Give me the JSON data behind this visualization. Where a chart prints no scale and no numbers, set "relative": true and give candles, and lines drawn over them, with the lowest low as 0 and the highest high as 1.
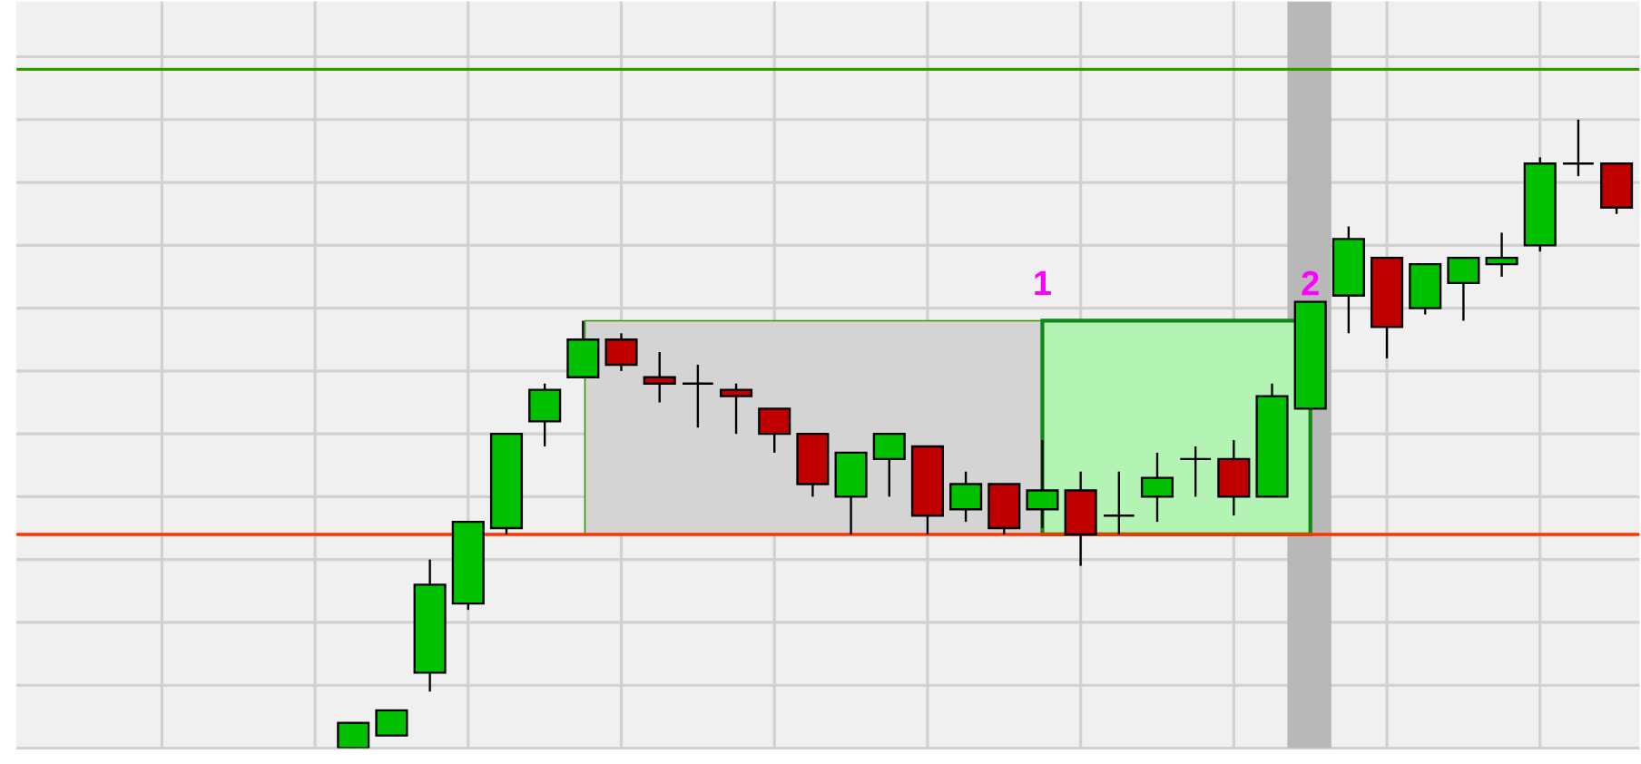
{
  "chart_data": {
    "type": "candlestick",
    "relative": true,
    "categories": [
      null,
      null,
      null,
      null,
      null,
      null,
      null,
      null,
      null,
      null,
      null,
      null,
      null,
      null,
      null,
      null,
      null,
      null,
      null,
      null,
      null,
      null,
      null,
      null,
      null,
      null,
      null,
      null,
      null,
      null,
      null,
      null,
      null,
      null
    ],
    "ohlc": [
      [
        0,
        0.04,
        0,
        0.04
      ],
      [
        0.02,
        0.06,
        0.02,
        0.06
      ],
      [
        0.12,
        0.3,
        0.09,
        0.26
      ],
      [
        0.23,
        0.36,
        0.22,
        0.36
      ],
      [
        0.35,
        0.5,
        0.34,
        0.5
      ],
      [
        0.52,
        0.58,
        0.48,
        0.57
      ],
      [
        0.59,
        0.68,
        0.59,
        0.65
      ],
      [
        0.65,
        0.66,
        0.6,
        0.61
      ],
      [
        0.59,
        0.63,
        0.55,
        0.58
      ],
      [
        0.58,
        0.61,
        0.51,
        0.58
      ],
      [
        0.57,
        0.58,
        0.5,
        0.56
      ],
      [
        0.54,
        0.54,
        0.47,
        0.5
      ],
      [
        0.5,
        0.5,
        0.4,
        0.42
      ],
      [
        0.4,
        0.47,
        0.34,
        0.47
      ],
      [
        0.46,
        0.5,
        0.4,
        0.5
      ],
      [
        0.48,
        0.48,
        0.34,
        0.37
      ],
      [
        0.38,
        0.44,
        0.36,
        0.42
      ],
      [
        0.42,
        0.42,
        0.34,
        0.35
      ],
      [
        0.38,
        0.49,
        0.35,
        0.41
      ],
      [
        0.41,
        0.44,
        0.29,
        0.34
      ],
      [
        0.37,
        0.44,
        0.34,
        0.37
      ],
      [
        0.4,
        0.47,
        0.36,
        0.43
      ],
      [
        0.46,
        0.48,
        0.4,
        0.46
      ],
      [
        0.46,
        0.49,
        0.37,
        0.4
      ],
      [
        0.4,
        0.58,
        0.4,
        0.56
      ],
      [
        0.54,
        0.71,
        0.54,
        0.71
      ],
      [
        0.72,
        0.83,
        0.66,
        0.81
      ],
      [
        0.78,
        0.78,
        0.62,
        0.67
      ],
      [
        0.7,
        0.77,
        0.69,
        0.77
      ],
      [
        0.74,
        0.78,
        0.68,
        0.78
      ],
      [
        0.77,
        0.82,
        0.75,
        0.78
      ],
      [
        0.8,
        0.94,
        0.79,
        0.93
      ],
      [
        0.93,
        1,
        0.91,
        0.93
      ],
      [
        0.93,
        0.93,
        0.85,
        0.86
      ]
    ],
    "tick_labels": false,
    "grid": true,
    "ref_lines": [
      {
        "axis": "y",
        "value": 1.08,
        "color": "#339900"
      },
      {
        "axis": "y",
        "value": 0.34,
        "color": "#ff3300"
      }
    ],
    "bands": [
      {
        "axis": "y",
        "from": 0.34,
        "to": 0.68,
        "color": "#d4d4d4"
      },
      {
        "axis": "y",
        "from": 0.34,
        "to": 0.68,
        "color": "#b3f3b3"
      }
    ],
    "annotations": [
      "1",
      "2"
    ]
  }
}
